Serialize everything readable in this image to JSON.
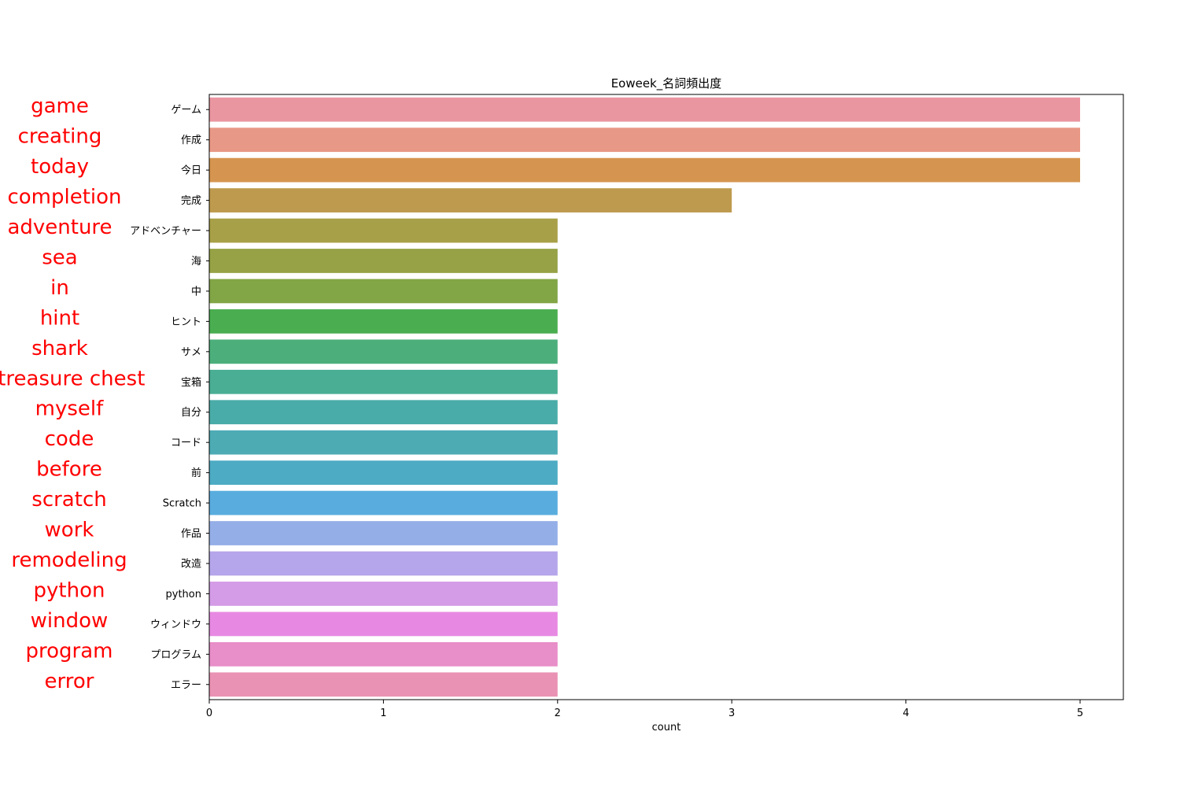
{
  "chart_data": {
    "type": "bar",
    "orientation": "horizontal",
    "title": "Eoweek_名詞頻出度",
    "xlabel": "count",
    "ylabel": "",
    "xlim": [
      0,
      5.25
    ],
    "xticks": [
      0,
      1,
      2,
      3,
      4,
      5
    ],
    "grid": false,
    "categories": [
      "ゲーム",
      "作成",
      "今日",
      "完成",
      "アドベンチャー",
      "海",
      "中",
      "ヒント",
      "サメ",
      "宝箱",
      "自分",
      "コード",
      "前",
      "Scratch",
      "作品",
      "改造",
      "python",
      "ウィンドウ",
      "プログラム",
      "エラー"
    ],
    "values": [
      5,
      5,
      5,
      3,
      2,
      2,
      2,
      2,
      2,
      2,
      2,
      2,
      2,
      2,
      2,
      2,
      2,
      2,
      2,
      2
    ],
    "colors": [
      "#ea96a1",
      "#e89886",
      "#d59550",
      "#be9a4e",
      "#a8a048",
      "#96a245",
      "#82a546",
      "#4aae50",
      "#4caf7b",
      "#4aae94",
      "#4aaca8",
      "#4dabb4",
      "#4dabc3",
      "#59adde",
      "#94aee7",
      "#b5a5ea",
      "#d49be6",
      "#e789e2",
      "#e88ec8",
      "#ea92b3"
    ],
    "annotations": [
      "game",
      "creating",
      "today",
      "completion",
      "adventure",
      "sea",
      "in",
      "hint",
      "shark",
      "treasure chest",
      "myself",
      "code",
      "before",
      "scratch",
      "work",
      "remodeling",
      "python",
      "window",
      "program",
      "error"
    ],
    "annotation_color": "#ff0000"
  }
}
